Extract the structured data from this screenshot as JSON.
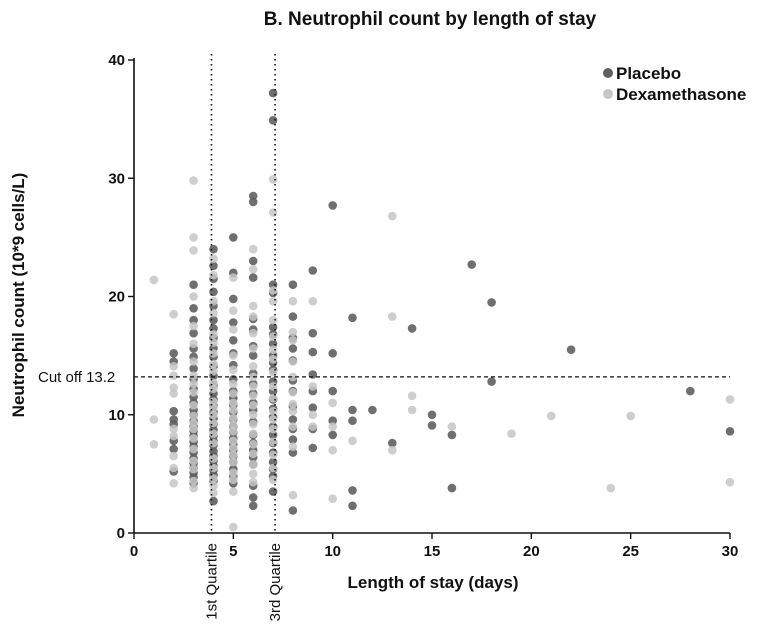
{
  "chart_data": {
    "type": "scatter",
    "title": "B. Neutrophil count by length of stay",
    "xlabel": "Length of stay (days)",
    "ylabel": "Neutrophil count (10*9 cells/L)",
    "xlim": [
      0,
      30
    ],
    "ylim": [
      0,
      40
    ],
    "xticks": [
      0,
      5,
      10,
      15,
      20,
      25,
      30
    ],
    "yticks": [
      0,
      10,
      20,
      30,
      40
    ],
    "grid": false,
    "legend_position": "top-right",
    "reference_lines": {
      "cutoff": {
        "value": 13.2,
        "label": "Cut off 13.2"
      },
      "quartile1": {
        "value": 3.9,
        "label": "1st Quartile"
      },
      "quartile3": {
        "value": 7.1,
        "label": "3rd Quartile"
      }
    },
    "series": [
      {
        "name": "Placebo",
        "color": "#5f5f5f",
        "points": [
          [
            2,
            15.2
          ],
          [
            2,
            14.5
          ],
          [
            2,
            10.3
          ],
          [
            2,
            9.6
          ],
          [
            2,
            9.2
          ],
          [
            2,
            7.8
          ],
          [
            2,
            7.1
          ],
          [
            2,
            5.2
          ],
          [
            3,
            21.0
          ],
          [
            3,
            19.0
          ],
          [
            3,
            18.0
          ],
          [
            3,
            16.9
          ],
          [
            3,
            15.6
          ],
          [
            3,
            14.9
          ],
          [
            3,
            13.9
          ],
          [
            3,
            13.0
          ],
          [
            3,
            12.2
          ],
          [
            3,
            11.5
          ],
          [
            3,
            11.0
          ],
          [
            3,
            10.4
          ],
          [
            3,
            10.0
          ],
          [
            3,
            9.5
          ],
          [
            3,
            9.0
          ],
          [
            3,
            8.6
          ],
          [
            3,
            8.2
          ],
          [
            3,
            7.7
          ],
          [
            3,
            7.3
          ],
          [
            3,
            6.8
          ],
          [
            3,
            6.3
          ],
          [
            3,
            5.9
          ],
          [
            3,
            5.5
          ],
          [
            3,
            5.1
          ],
          [
            3,
            4.7
          ],
          [
            3,
            4.2
          ],
          [
            4,
            24.0
          ],
          [
            4,
            22.6
          ],
          [
            4,
            21.5
          ],
          [
            4,
            20.4
          ],
          [
            4,
            19.2
          ],
          [
            4,
            18.0
          ],
          [
            4,
            17.3
          ],
          [
            4,
            16.5
          ],
          [
            4,
            15.6
          ],
          [
            4,
            14.9
          ],
          [
            4,
            14.1
          ],
          [
            4,
            13.3
          ],
          [
            4,
            12.5
          ],
          [
            4,
            11.8
          ],
          [
            4,
            11.3
          ],
          [
            4,
            10.8
          ],
          [
            4,
            10.2
          ],
          [
            4,
            9.7
          ],
          [
            4,
            9.2
          ],
          [
            4,
            8.7
          ],
          [
            4,
            8.2
          ],
          [
            4,
            7.8
          ],
          [
            4,
            7.4
          ],
          [
            4,
            6.9
          ],
          [
            4,
            6.5
          ],
          [
            4,
            6.1
          ],
          [
            4,
            5.7
          ],
          [
            4,
            5.3
          ],
          [
            4,
            4.9
          ],
          [
            4,
            4.4
          ],
          [
            4,
            2.7
          ],
          [
            5,
            25.0
          ],
          [
            5,
            22.0
          ],
          [
            5,
            19.8
          ],
          [
            5,
            17.8
          ],
          [
            5,
            16.3
          ],
          [
            5,
            15.2
          ],
          [
            5,
            14.2
          ],
          [
            5,
            13.0
          ],
          [
            5,
            12.0
          ],
          [
            5,
            11.4
          ],
          [
            5,
            10.8
          ],
          [
            5,
            10.2
          ],
          [
            5,
            9.6
          ],
          [
            5,
            9.0
          ],
          [
            5,
            8.5
          ],
          [
            5,
            8.0
          ],
          [
            5,
            7.5
          ],
          [
            5,
            7.0
          ],
          [
            5,
            6.5
          ],
          [
            5,
            6.0
          ],
          [
            5,
            5.4
          ],
          [
            5,
            4.8
          ],
          [
            5,
            4.2
          ],
          [
            6,
            28.5
          ],
          [
            6,
            28.0
          ],
          [
            6,
            23.0
          ],
          [
            6,
            21.6
          ],
          [
            6,
            18.1
          ],
          [
            6,
            17.2
          ],
          [
            6,
            15.8
          ],
          [
            6,
            15.0
          ],
          [
            6,
            13.5
          ],
          [
            6,
            12.6
          ],
          [
            6,
            11.8
          ],
          [
            6,
            11.0
          ],
          [
            6,
            10.4
          ],
          [
            6,
            9.4
          ],
          [
            6,
            8.3
          ],
          [
            6,
            7.6
          ],
          [
            6,
            7.0
          ],
          [
            6,
            6.4
          ],
          [
            6,
            5.8
          ],
          [
            6,
            4.0
          ],
          [
            6,
            3.0
          ],
          [
            6,
            2.3
          ],
          [
            7,
            37.2
          ],
          [
            7,
            34.9
          ],
          [
            7,
            21.0
          ],
          [
            7,
            20.3
          ],
          [
            7,
            17.4
          ],
          [
            7,
            16.8
          ],
          [
            7,
            16.0
          ],
          [
            7,
            15.0
          ],
          [
            7,
            14.4
          ],
          [
            7,
            13.8
          ],
          [
            7,
            12.8
          ],
          [
            7,
            12.0
          ],
          [
            7,
            11.3
          ],
          [
            7,
            10.5
          ],
          [
            7,
            9.8
          ],
          [
            7,
            9.0
          ],
          [
            7,
            8.3
          ],
          [
            7,
            7.6
          ],
          [
            7,
            6.8
          ],
          [
            7,
            6.0
          ],
          [
            7,
            5.4
          ],
          [
            7,
            4.8
          ],
          [
            7,
            3.5
          ],
          [
            8,
            21.0
          ],
          [
            8,
            18.3
          ],
          [
            8,
            16.5
          ],
          [
            8,
            15.6
          ],
          [
            8,
            14.6
          ],
          [
            8,
            12.9
          ],
          [
            8,
            12.0
          ],
          [
            8,
            10.7
          ],
          [
            8,
            9.6
          ],
          [
            8,
            8.8
          ],
          [
            8,
            7.9
          ],
          [
            8,
            6.8
          ],
          [
            8,
            1.9
          ],
          [
            9,
            22.2
          ],
          [
            9,
            16.9
          ],
          [
            9,
            15.3
          ],
          [
            9,
            13.4
          ],
          [
            9,
            12.0
          ],
          [
            9,
            10.6
          ],
          [
            9,
            8.8
          ],
          [
            9,
            7.2
          ],
          [
            10,
            27.7
          ],
          [
            10,
            15.2
          ],
          [
            10,
            12.0
          ],
          [
            10,
            9.5
          ],
          [
            10,
            8.3
          ],
          [
            11,
            18.2
          ],
          [
            11,
            10.4
          ],
          [
            11,
            9.5
          ],
          [
            11,
            3.6
          ],
          [
            11,
            2.3
          ],
          [
            12,
            10.4
          ],
          [
            13,
            7.6
          ],
          [
            14,
            17.3
          ],
          [
            15,
            10.0
          ],
          [
            15,
            9.1
          ],
          [
            16,
            8.3
          ],
          [
            16,
            3.8
          ],
          [
            17,
            22.7
          ],
          [
            18,
            19.5
          ],
          [
            18,
            12.8
          ],
          [
            22,
            15.5
          ],
          [
            28,
            12.0
          ],
          [
            30,
            8.6
          ]
        ]
      },
      {
        "name": "Dexamethasone",
        "color": "#c6c6c6",
        "points": [
          [
            1,
            21.4
          ],
          [
            1,
            9.6
          ],
          [
            1,
            7.5
          ],
          [
            2,
            18.5
          ],
          [
            2,
            14.1
          ],
          [
            2,
            13.3
          ],
          [
            2,
            12.3
          ],
          [
            2,
            11.8
          ],
          [
            2,
            8.8
          ],
          [
            2,
            8.2
          ],
          [
            2,
            6.5
          ],
          [
            2,
            5.5
          ],
          [
            2,
            4.2
          ],
          [
            3,
            29.8
          ],
          [
            3,
            25.0
          ],
          [
            3,
            23.9
          ],
          [
            3,
            20.0
          ],
          [
            3,
            17.5
          ],
          [
            3,
            16.0
          ],
          [
            3,
            14.5
          ],
          [
            3,
            13.3
          ],
          [
            3,
            12.6
          ],
          [
            3,
            11.9
          ],
          [
            3,
            10.8
          ],
          [
            3,
            9.9
          ],
          [
            3,
            9.3
          ],
          [
            3,
            8.8
          ],
          [
            3,
            8.0
          ],
          [
            3,
            7.1
          ],
          [
            3,
            6.1
          ],
          [
            3,
            5.4
          ],
          [
            3,
            4.4
          ],
          [
            3,
            3.8
          ],
          [
            4,
            23.2
          ],
          [
            4,
            21.8
          ],
          [
            4,
            19.6
          ],
          [
            4,
            18.6
          ],
          [
            4,
            16.8
          ],
          [
            4,
            16.1
          ],
          [
            4,
            15.2
          ],
          [
            4,
            14.3
          ],
          [
            4,
            13.7
          ],
          [
            4,
            12.7
          ],
          [
            4,
            12.2
          ],
          [
            4,
            11.1
          ],
          [
            4,
            10.6
          ],
          [
            4,
            10.0
          ],
          [
            4,
            9.3
          ],
          [
            4,
            8.4
          ],
          [
            4,
            7.6
          ],
          [
            4,
            6.3
          ],
          [
            4,
            5.5
          ],
          [
            4,
            4.6
          ],
          [
            4,
            4.0
          ],
          [
            4,
            3.4
          ],
          [
            5,
            21.6
          ],
          [
            5,
            18.8
          ],
          [
            5,
            17.2
          ],
          [
            5,
            15.0
          ],
          [
            5,
            13.8
          ],
          [
            5,
            12.6
          ],
          [
            5,
            11.8
          ],
          [
            5,
            11.0
          ],
          [
            5,
            10.4
          ],
          [
            5,
            9.7
          ],
          [
            5,
            9.1
          ],
          [
            5,
            8.6
          ],
          [
            5,
            7.8
          ],
          [
            5,
            7.2
          ],
          [
            5,
            6.6
          ],
          [
            5,
            6.0
          ],
          [
            5,
            5.1
          ],
          [
            5,
            4.5
          ],
          [
            5,
            3.5
          ],
          [
            5,
            0.5
          ],
          [
            6,
            24.0
          ],
          [
            6,
            22.3
          ],
          [
            6,
            19.2
          ],
          [
            6,
            18.3
          ],
          [
            6,
            16.9
          ],
          [
            6,
            15.6
          ],
          [
            6,
            14.1
          ],
          [
            6,
            13.2
          ],
          [
            6,
            12.4
          ],
          [
            6,
            11.6
          ],
          [
            6,
            10.8
          ],
          [
            6,
            10.0
          ],
          [
            6,
            9.2
          ],
          [
            6,
            8.4
          ],
          [
            6,
            7.5
          ],
          [
            6,
            6.7
          ],
          [
            6,
            5.8
          ],
          [
            6,
            5.0
          ],
          [
            6,
            4.3
          ],
          [
            7,
            29.9
          ],
          [
            7,
            27.1
          ],
          [
            7,
            20.5
          ],
          [
            7,
            19.6
          ],
          [
            7,
            18.0
          ],
          [
            7,
            16.6
          ],
          [
            7,
            15.5
          ],
          [
            7,
            14.7
          ],
          [
            7,
            13.6
          ],
          [
            7,
            12.4
          ],
          [
            7,
            11.4
          ],
          [
            7,
            10.3
          ],
          [
            7,
            9.6
          ],
          [
            7,
            8.8
          ],
          [
            7,
            7.7
          ],
          [
            7,
            6.6
          ],
          [
            7,
            5.5
          ],
          [
            7,
            4.5
          ],
          [
            8,
            19.6
          ],
          [
            8,
            17.0
          ],
          [
            8,
            16.3
          ],
          [
            8,
            14.5
          ],
          [
            8,
            13.2
          ],
          [
            8,
            11.9
          ],
          [
            8,
            10.9
          ],
          [
            8,
            10.3
          ],
          [
            8,
            9.0
          ],
          [
            8,
            7.3
          ],
          [
            8,
            3.2
          ],
          [
            9,
            19.6
          ],
          [
            9,
            12.4
          ],
          [
            9,
            10.0
          ],
          [
            9,
            9.0
          ],
          [
            10,
            11.0
          ],
          [
            10,
            9.0
          ],
          [
            10,
            7.0
          ],
          [
            10,
            2.9
          ],
          [
            11,
            7.8
          ],
          [
            13,
            26.8
          ],
          [
            13,
            18.3
          ],
          [
            13,
            7.0
          ],
          [
            14,
            11.6
          ],
          [
            14,
            10.4
          ],
          [
            16,
            9.0
          ],
          [
            19,
            8.4
          ],
          [
            21,
            9.9
          ],
          [
            24,
            3.8
          ],
          [
            25,
            9.9
          ],
          [
            30,
            11.3
          ],
          [
            30,
            4.3
          ]
        ]
      }
    ]
  }
}
